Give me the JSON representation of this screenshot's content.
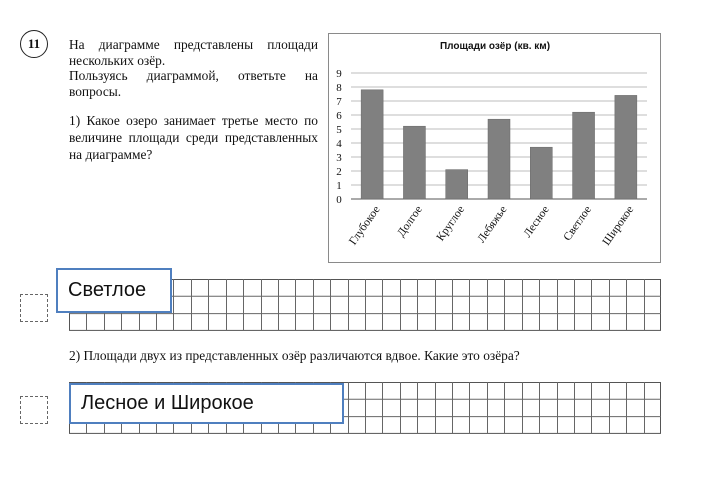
{
  "task": {
    "number": "11",
    "intro_lines": [
      "На диаграмме представлены площади нескольких озёр.",
      "Пользуясь диаграммой, ответьте на вопросы."
    ],
    "question1": "1) Какое озеро занимает третье место по величине площади среди представленных на диаграмме?",
    "answer1": "Светлое",
    "question2": "2) Площади двух из представленных озёр различаются вдвое. Какие это озёра?",
    "answer2": "Лесное и Широкое"
  },
  "chart_data": {
    "type": "bar",
    "title": "Площади озёр (кв. км)",
    "categories": [
      "Глубокое",
      "Долгое",
      "Круглое",
      "Лебяжье",
      "Лесное",
      "Светлое",
      "Широкое"
    ],
    "values": [
      7.8,
      5.2,
      2.1,
      5.7,
      3.7,
      6.2,
      7.4
    ],
    "ylim": [
      0,
      9
    ],
    "yticks": [
      0,
      1,
      2,
      3,
      4,
      5,
      6,
      7,
      8,
      9
    ],
    "grid": true,
    "bar_color": "#808080"
  }
}
